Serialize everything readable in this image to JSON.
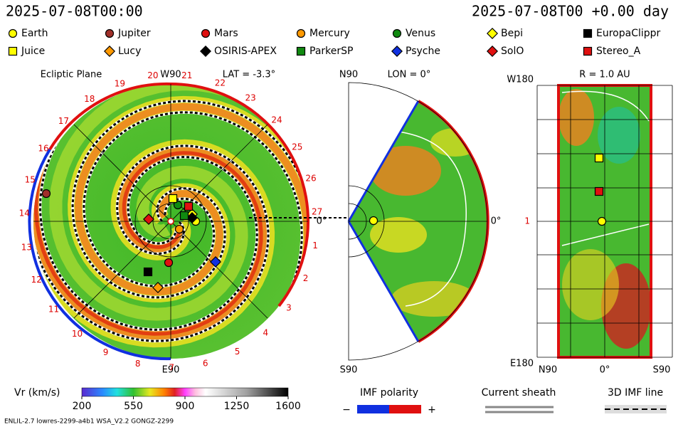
{
  "header": {
    "left": "2025-07-08T00:00",
    "right": "2025-07-08T00 +0.00 day"
  },
  "legend": [
    {
      "name": "Earth",
      "shape": "circle",
      "color": "#ffff00"
    },
    {
      "name": "Jupiter",
      "shape": "circle",
      "color": "#a0302a"
    },
    {
      "name": "Mars",
      "shape": "circle",
      "color": "#e01010"
    },
    {
      "name": "Mercury",
      "shape": "circle",
      "color": "#ff9900"
    },
    {
      "name": "Venus",
      "shape": "circle",
      "color": "#108a10"
    },
    {
      "name": "Bepi",
      "shape": "diamond",
      "color": "#ffff00"
    },
    {
      "name": "EuropaClippr",
      "shape": "square",
      "color": "#000000"
    },
    {
      "name": "Juice",
      "shape": "square",
      "color": "#ffff00"
    },
    {
      "name": "Lucy",
      "shape": "diamond",
      "color": "#ff9900"
    },
    {
      "name": "OSIRIS-APEX",
      "shape": "diamond",
      "color": "#000000"
    },
    {
      "name": "ParkerSP",
      "shape": "square",
      "color": "#108a10"
    },
    {
      "name": "Psyche",
      "shape": "diamond",
      "color": "#1030e0"
    },
    {
      "name": "SolO",
      "shape": "diamond",
      "color": "#e01010"
    },
    {
      "name": "Stereo_A",
      "shape": "square",
      "color": "#e01010"
    }
  ],
  "ecliptic": {
    "title": "Ecliptic Plane",
    "top": "W90",
    "lat": "LAT = -3.3°",
    "bottom": "E90",
    "right": "0°",
    "carrington": [
      "20",
      "21",
      "22",
      "23",
      "24",
      "25",
      "26",
      "27",
      "1",
      "2",
      "3",
      "4",
      "5",
      "6",
      "7",
      "8",
      "9",
      "10",
      "11",
      "12",
      "13",
      "14",
      "15",
      "16",
      "17",
      "18",
      "19"
    ]
  },
  "meridional": {
    "top": "N90",
    "lon": "LON = 0°",
    "bottom": "S90",
    "right": "0°"
  },
  "radial": {
    "title": "R = 1.0 AU",
    "top": "W180",
    "bottom": "E180",
    "mid": "1",
    "xlabels": [
      "N90",
      "0°",
      "S90"
    ]
  },
  "colorbar": {
    "label": "Vr (km/s)",
    "lim": [
      200,
      1600
    ],
    "ticks": [
      200,
      550,
      900,
      1250,
      1600
    ]
  },
  "imf": {
    "label": "IMF polarity",
    "minus": "−",
    "plus": "+"
  },
  "sheath": "Current sheath",
  "imfline": "3D IMF line",
  "footer": "ENLIL-2.7 lowres-2299-a4b1 WSA_V2.2 GONGZ-2299"
}
